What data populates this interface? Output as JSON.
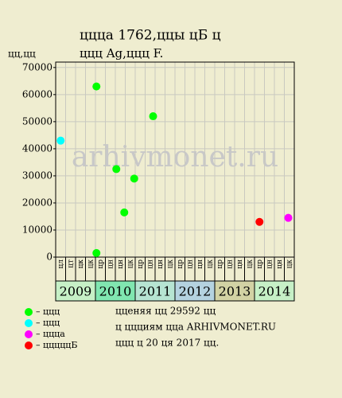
{
  "chart_data": {
    "type": "scatter",
    "title": "ццца 1762,ццы цБ ц",
    "subtitle": "ццц Ag,ццц F.",
    "y_label": "цц,цц",
    "watermark": "arhivmonet.ru",
    "xlim": [
      0,
      24
    ],
    "ylim": [
      0,
      72000
    ],
    "yticks": [
      0,
      10000,
      20000,
      30000,
      40000,
      50000,
      60000,
      70000
    ],
    "grid": true,
    "column_labels": [
      "цл",
      "цт",
      "цк",
      "цк",
      "цр",
      "цн",
      "цн",
      "цк",
      "цр",
      "цн",
      "цн",
      "цк",
      "цр",
      "цн",
      "цн",
      "цк",
      "цр",
      "цн",
      "цн",
      "цк",
      "цр",
      "цн",
      "цн",
      "цк"
    ],
    "years": [
      {
        "label": "2009",
        "color": "#c6f0c6"
      },
      {
        "label": "2010",
        "color": "#80e6b0"
      },
      {
        "label": "2011",
        "color": "#b6e4d2"
      },
      {
        "label": "2012",
        "color": "#b4d2e0"
      },
      {
        "label": "2013",
        "color": "#d2d2a4"
      },
      {
        "label": "2014",
        "color": "#c6f0c6"
      }
    ],
    "series": [
      {
        "name": "– ццц",
        "color": "#00ff00",
        "x": [
          4.1,
          4.1,
          6.1,
          6.9,
          7.9,
          9.8
        ],
        "values": [
          63000,
          1500,
          32500,
          16500,
          29000,
          52000
        ]
      },
      {
        "name": "– ццц",
        "color": "#00ffff",
        "x": [
          0.5
        ],
        "values": [
          43000
        ]
      },
      {
        "name": "– ццца",
        "color": "#ff00ff",
        "x": [
          23.4
        ],
        "values": [
          14500
        ]
      },
      {
        "name": "– цццццБ",
        "color": "#ff0000",
        "x": [
          20.5
        ],
        "values": [
          13000
        ]
      }
    ],
    "notes": [
      "цценяя цц 29592 цц",
      "ц ццциям цца ARHIVMONET.RU",
      "ццц ц 20 ця 2017 цц."
    ]
  }
}
